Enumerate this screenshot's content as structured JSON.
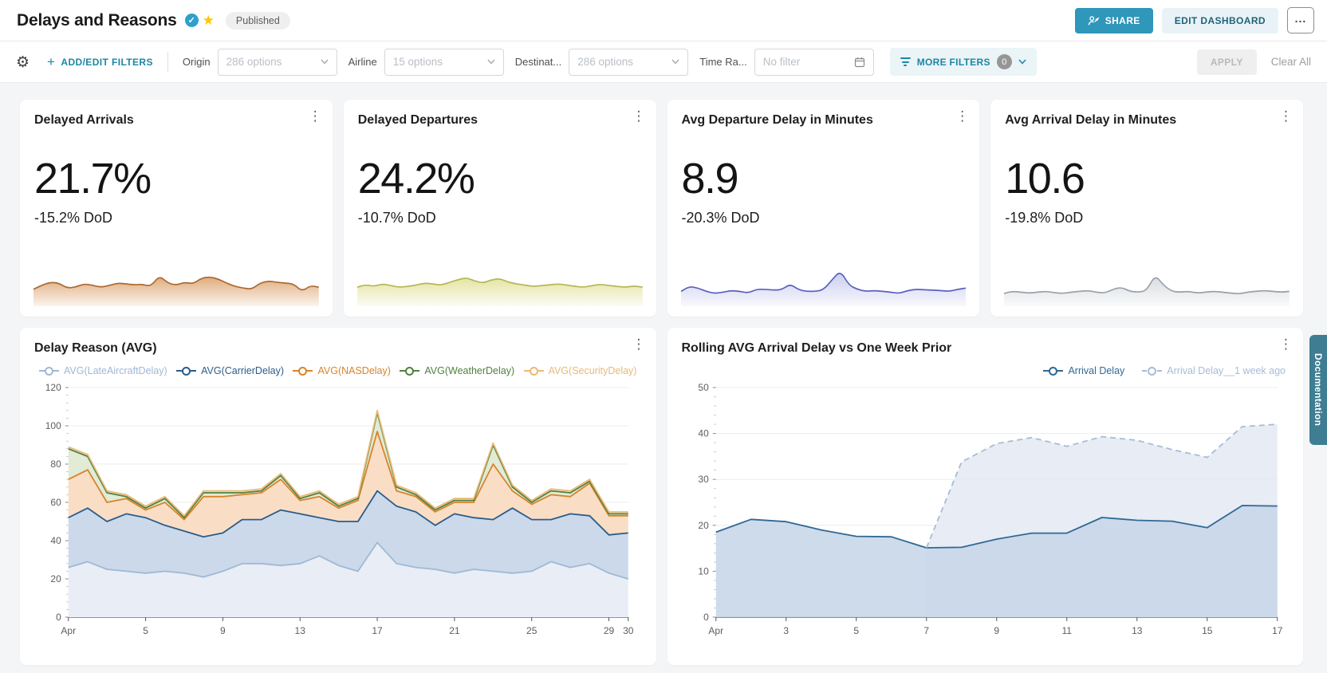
{
  "header": {
    "title": "Delays and Reasons",
    "published_label": "Published",
    "share_label": "SHARE",
    "edit_label": "EDIT DASHBOARD",
    "more_menu_label": "...",
    "accent_color": "#2e97ba"
  },
  "filter_bar": {
    "add_edit_label": "ADD/EDIT FILTERS",
    "filters": [
      {
        "label": "Origin",
        "value": "286 options"
      },
      {
        "label": "Airline",
        "value": "15 options"
      },
      {
        "label": "Destinat...",
        "value": "286 options"
      },
      {
        "label": "Time Ra...",
        "value": "No filter"
      }
    ],
    "more_filters_label": "MORE FILTERS",
    "more_filters_count": "0",
    "apply_label": "APPLY",
    "clear_all_label": "Clear All"
  },
  "kpi_cards": [
    {
      "title": "Delayed Arrivals",
      "value": "21.7%",
      "delta": "-15.2% DoD",
      "line_color": "#ab6a32",
      "fill_color": "#dda36f",
      "sparkline": [
        35,
        45,
        52,
        50,
        38,
        40,
        48,
        45,
        40,
        44,
        50,
        48,
        46,
        47,
        42,
        68,
        50,
        45,
        52,
        48,
        62,
        65,
        60,
        50,
        42,
        38,
        35,
        50,
        55,
        52,
        50,
        48,
        30,
        44,
        40
      ]
    },
    {
      "title": "Delayed Departures",
      "value": "24.2%",
      "delta": "-10.7% DoD",
      "line_color": "#b5b757",
      "fill_color": "#e2e29a",
      "sparkline": [
        40,
        46,
        42,
        48,
        44,
        40,
        42,
        45,
        50,
        48,
        45,
        52,
        58,
        63,
        55,
        50,
        58,
        61,
        52,
        48,
        45,
        42,
        44,
        46,
        48,
        45,
        42,
        40,
        44,
        47,
        44,
        42,
        40,
        43,
        40
      ]
    },
    {
      "title": "Avg Departure Delay in Minutes",
      "value": "8.9",
      "delta": "-20.3% DoD",
      "line_color": "#5a5fc0",
      "fill_color": "#c7c9ed",
      "sparkline": [
        30,
        42,
        38,
        30,
        25,
        28,
        32,
        30,
        26,
        35,
        35,
        33,
        34,
        48,
        34,
        30,
        30,
        34,
        58,
        80,
        45,
        35,
        30,
        32,
        30,
        28,
        25,
        32,
        35,
        34,
        33,
        32,
        30,
        35,
        38
      ]
    },
    {
      "title": "Avg Arrival Delay in Minutes",
      "value": "10.6",
      "delta": "-19.8% DoD",
      "line_color": "#98a2ab",
      "fill_color": "#d5dade",
      "sparkline": [
        25,
        30,
        28,
        26,
        28,
        30,
        27,
        25,
        28,
        30,
        32,
        28,
        26,
        35,
        40,
        30,
        28,
        32,
        70,
        45,
        30,
        28,
        30,
        26,
        28,
        30,
        28,
        26,
        24,
        28,
        30,
        32,
        30,
        28,
        30
      ]
    }
  ],
  "documentation_tab_label": "Documentation",
  "chart_data": [
    {
      "type": "area",
      "title": "Delay Reason (AVG)",
      "x_unit": "day of April",
      "x": [
        1,
        2,
        3,
        4,
        5,
        6,
        7,
        8,
        9,
        10,
        11,
        12,
        13,
        14,
        15,
        16,
        17,
        18,
        19,
        20,
        21,
        22,
        23,
        24,
        25,
        26,
        27,
        28,
        29,
        30
      ],
      "xticks": [
        {
          "day": 1,
          "label": "Apr"
        },
        {
          "day": 5,
          "label": "5"
        },
        {
          "day": 9,
          "label": "9"
        },
        {
          "day": 13,
          "label": "13"
        },
        {
          "day": 17,
          "label": "17"
        },
        {
          "day": 21,
          "label": "21"
        },
        {
          "day": 25,
          "label": "25"
        },
        {
          "day": 29,
          "label": "29"
        },
        {
          "day": 30,
          "label": "30"
        }
      ],
      "ylim": [
        0,
        120
      ],
      "ytick_step": 20,
      "grid": true,
      "legend_position": "top",
      "note": "stacked area; series values are the rendered cumulative line positions read off the y-axis",
      "series": [
        {
          "name": "AVG(LateAircraftDelay)",
          "color": "#9fb9d4",
          "fill": "#e9edf6",
          "fill_to": "zero",
          "z": 0,
          "values": [
            26,
            29,
            25,
            24,
            23,
            24,
            23,
            21,
            24,
            28,
            28,
            27,
            28,
            32,
            27,
            24,
            39,
            28,
            26,
            25,
            23,
            25,
            24,
            23,
            24,
            29,
            26,
            28,
            23,
            20
          ]
        },
        {
          "name": "AVG(CarrierDelay)",
          "color": "#2c5c8a",
          "fill": "#cbd9ea",
          "fill_to": "prev",
          "prev": 0,
          "z": 1,
          "values": [
            52,
            57,
            50,
            54,
            52,
            48,
            45,
            42,
            44,
            51,
            51,
            56,
            54,
            52,
            50,
            50,
            66,
            58,
            55,
            48,
            54,
            52,
            51,
            57,
            51,
            51,
            54,
            53,
            43,
            44
          ]
        },
        {
          "name": "AVG(NASDelay)",
          "color": "#d8832b",
          "fill": "#f9dec5",
          "fill_to": "prev",
          "prev": 1,
          "z": 2,
          "values": [
            72,
            77,
            60,
            62,
            56,
            60,
            51,
            63,
            63,
            64,
            65,
            72,
            61,
            63,
            57,
            61,
            97,
            66,
            63,
            55,
            60,
            60,
            80,
            66,
            59,
            64,
            63,
            70,
            53,
            53
          ]
        },
        {
          "name": "AVG(WeatherDelay)",
          "color": "#51803e",
          "fill": "#e1ebd5",
          "fill_to": "prev",
          "prev": 2,
          "z": 3,
          "values": [
            88,
            84,
            65,
            63,
            57,
            62,
            52,
            65,
            65,
            65,
            66,
            74,
            62,
            65,
            58,
            62,
            107,
            68,
            64,
            56,
            61,
            61,
            90,
            68,
            60,
            66,
            65,
            71,
            54,
            54
          ]
        },
        {
          "name": "AVG(SecurityDelay)",
          "color": "#e9ba77",
          "fill": "#f6e9d2",
          "fill_to": "prev",
          "prev": 3,
          "z": 4,
          "values": [
            89,
            85,
            66,
            64,
            58,
            63,
            53,
            66,
            66,
            66,
            67,
            75,
            63,
            66,
            59,
            63,
            108,
            69,
            65,
            57,
            62,
            62,
            91,
            69,
            61,
            67,
            66,
            72,
            55,
            55
          ]
        }
      ]
    },
    {
      "type": "line",
      "title": "Rolling AVG Arrival Delay vs One Week Prior",
      "x_unit": "day of April",
      "x": [
        1,
        2,
        3,
        4,
        5,
        6,
        7,
        8,
        9,
        10,
        11,
        12,
        13,
        14,
        15,
        16,
        17
      ],
      "xticks": [
        {
          "day": 1,
          "label": "Apr"
        },
        {
          "day": 3,
          "label": "3"
        },
        {
          "day": 5,
          "label": "5"
        },
        {
          "day": 7,
          "label": "7"
        },
        {
          "day": 9,
          "label": "9"
        },
        {
          "day": 11,
          "label": "11"
        },
        {
          "day": 13,
          "label": "13"
        },
        {
          "day": 15,
          "label": "15"
        },
        {
          "day": 17,
          "label": "17"
        }
      ],
      "ylim": [
        0,
        50
      ],
      "ytick_step": 10,
      "grid": true,
      "legend_position": "top-right",
      "series": [
        {
          "name": "Arrival Delay",
          "color": "#2f6995",
          "fill": "#c8d7e9",
          "fill_opacity": 0.9,
          "fill_to": "zero",
          "z": 1,
          "values": [
            18.5,
            21.3,
            20.8,
            19.0,
            17.6,
            17.5,
            15.1,
            15.2,
            17.0,
            18.3,
            18.3,
            21.7,
            21.1,
            20.9,
            19.5,
            24.3,
            24.2
          ]
        },
        {
          "name": "Arrival Delay__1 week ago",
          "color": "#a8bcd4",
          "dashed": true,
          "fill": "#e4eaf4",
          "fill_opacity": 0.9,
          "fill_to": "zero",
          "z": 0,
          "values": [
            null,
            null,
            null,
            null,
            null,
            null,
            15.1,
            33.8,
            37.8,
            39.1,
            37.2,
            39.3,
            38.5,
            36.5,
            34.8,
            41.5,
            42.0
          ]
        }
      ]
    }
  ]
}
